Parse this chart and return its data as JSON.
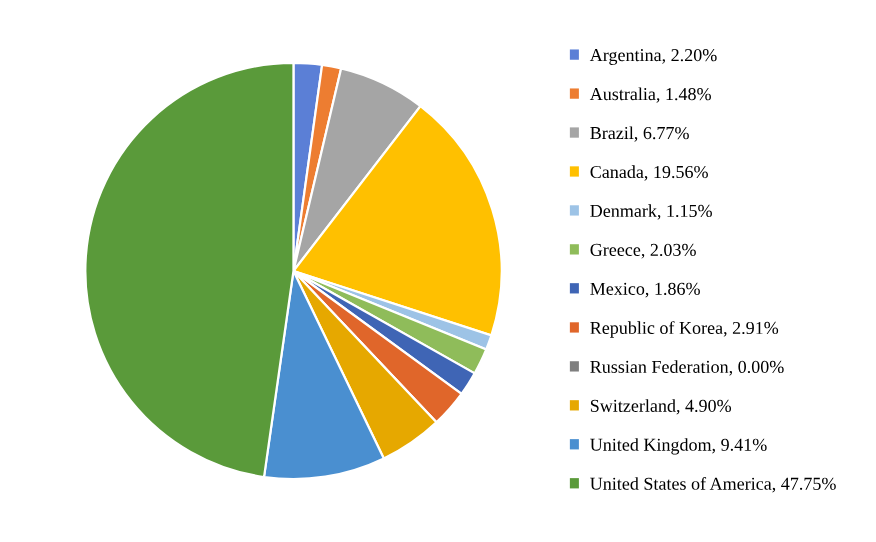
{
  "chart_data": {
    "type": "pie",
    "categories": [
      "Argentina",
      "Australia",
      "Brazil",
      "Canada",
      "Denmark",
      "Greece",
      "Mexico",
      "Republic of Korea",
      "Russian Federation",
      "Switzerland",
      "United Kingdom",
      "United States of America"
    ],
    "values": [
      2.2,
      1.48,
      6.77,
      19.56,
      1.15,
      2.03,
      1.86,
      2.91,
      0.0,
      4.9,
      9.41,
      47.75
    ],
    "value_labels": [
      "2.20%",
      "1.48%",
      "6.77%",
      "19.56%",
      "1.15%",
      "2.03%",
      "1.86%",
      "2.91%",
      "0.00%",
      "4.90%",
      "9.41%",
      "47.75%"
    ],
    "colors": [
      "#5b7fd6",
      "#ed7d31",
      "#a5a5a5",
      "#ffc000",
      "#9dc3e6",
      "#8fbc5a",
      "#3f65b5",
      "#e0662a",
      "#7f7f7f",
      "#e6a800",
      "#4a8fd0",
      "#5a9a3a"
    ],
    "legend": "right"
  }
}
